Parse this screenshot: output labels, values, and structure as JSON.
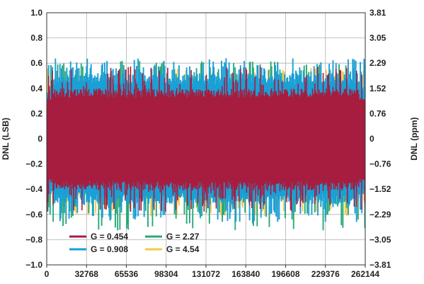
{
  "chart_data": {
    "type": "line",
    "title": "",
    "xlabel": "",
    "ylabel": "DNL (LSB)",
    "y2label": "DNL (ppm)",
    "xlim": [
      0,
      262144
    ],
    "ylim": [
      -1.0,
      1.0
    ],
    "x_ticks": [
      "0",
      "32768",
      "65536",
      "98304",
      "131072",
      "163840",
      "196608",
      "229376",
      "262144"
    ],
    "y_ticks": [
      "1.0",
      "0.8",
      "0.6",
      "0.4",
      "0.2",
      "0",
      "−0.2",
      "−0.4",
      "−0.6",
      "−0.8",
      "−1.0"
    ],
    "y2_ticks": [
      "3.81",
      "3.05",
      "2.29",
      "1.52",
      "0.76",
      "0",
      "−0.76",
      "−1.52",
      "−2.29",
      "−3.05",
      "−3.81"
    ],
    "grid": true,
    "legend_position": "bottom-left",
    "series": [
      {
        "name": "G = 4.54",
        "color": "#f2c94c",
        "envelope_max": 0.57,
        "envelope_min": -0.62,
        "typical_max": 0.45,
        "typical_min": -0.45
      },
      {
        "name": "G = 2.27",
        "color": "#2aa876",
        "envelope_max": 0.62,
        "envelope_min": -0.73,
        "typical_max": 0.46,
        "typical_min": -0.47
      },
      {
        "name": "G = 0.908",
        "color": "#1a9fd6",
        "envelope_max": 0.64,
        "envelope_min": -0.66,
        "typical_max": 0.52,
        "typical_min": -0.52
      },
      {
        "name": "G = 0.454",
        "color": "#a61d40",
        "envelope_max": 0.58,
        "envelope_min": -0.58,
        "typical_max": 0.4,
        "typical_min": -0.41
      }
    ]
  }
}
